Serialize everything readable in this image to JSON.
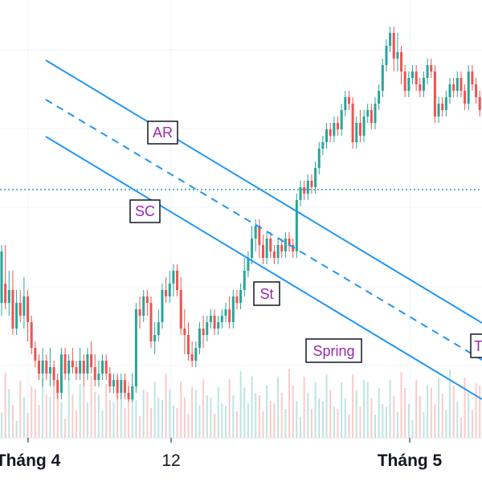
{
  "chart_data": {
    "type": "candlestick",
    "x_ticks": [
      {
        "label": "Tháng 4",
        "bold": true
      },
      {
        "label": "12",
        "bold": false
      },
      {
        "label": "Tháng 5",
        "bold": true
      }
    ],
    "annotations": [
      "AR",
      "SC",
      "St",
      "Spring",
      "T"
    ],
    "grid": true,
    "colors": {
      "up": "#26a69a",
      "down": "#ef5350",
      "channel": "#2196f3",
      "annotation_text": "#9c27b0",
      "reference_line": "#26a69a"
    },
    "candles": [
      [
        205,
        245,
        195,
        250
      ],
      [
        220,
        205,
        200,
        250
      ],
      [
        205,
        215,
        195,
        230
      ],
      [
        215,
        185,
        180,
        230
      ],
      [
        185,
        205,
        180,
        215
      ],
      [
        205,
        195,
        190,
        215
      ],
      [
        195,
        210,
        185,
        225
      ],
      [
        210,
        190,
        175,
        215
      ],
      [
        190,
        170,
        165,
        195
      ],
      [
        170,
        160,
        155,
        175
      ],
      [
        160,
        150,
        145,
        165
      ],
      [
        150,
        160,
        140,
        170
      ],
      [
        160,
        150,
        145,
        165
      ],
      [
        150,
        155,
        140,
        170
      ],
      [
        155,
        145,
        140,
        160
      ],
      [
        145,
        135,
        130,
        150
      ],
      [
        135,
        165,
        130,
        170
      ],
      [
        165,
        150,
        145,
        170
      ],
      [
        150,
        160,
        145,
        165
      ],
      [
        160,
        155,
        150,
        170
      ],
      [
        155,
        150,
        145,
        160
      ],
      [
        150,
        160,
        145,
        170
      ],
      [
        160,
        150,
        140,
        165
      ],
      [
        150,
        165,
        145,
        170
      ],
      [
        165,
        155,
        150,
        175
      ],
      [
        155,
        145,
        140,
        165
      ],
      [
        145,
        150,
        140,
        160
      ],
      [
        150,
        160,
        145,
        165
      ],
      [
        160,
        150,
        145,
        165
      ],
      [
        150,
        140,
        135,
        155
      ],
      [
        140,
        145,
        135,
        150
      ],
      [
        145,
        135,
        130,
        150
      ],
      [
        135,
        145,
        130,
        150
      ],
      [
        145,
        135,
        130,
        150
      ],
      [
        135,
        130,
        128,
        140
      ],
      [
        130,
        140,
        128,
        150
      ],
      [
        140,
        200,
        135,
        205
      ],
      [
        200,
        195,
        185,
        210
      ],
      [
        195,
        210,
        190,
        215
      ],
      [
        210,
        205,
        195,
        215
      ],
      [
        205,
        175,
        170,
        210
      ],
      [
        175,
        180,
        165,
        190
      ],
      [
        180,
        190,
        175,
        200
      ],
      [
        190,
        215,
        185,
        220
      ],
      [
        215,
        210,
        205,
        225
      ],
      [
        210,
        220,
        205,
        230
      ],
      [
        220,
        230,
        210,
        235
      ],
      [
        230,
        215,
        210,
        235
      ],
      [
        215,
        185,
        180,
        225
      ],
      [
        185,
        180,
        165,
        200
      ],
      [
        180,
        165,
        160,
        190
      ],
      [
        165,
        160,
        155,
        175
      ],
      [
        160,
        170,
        155,
        175
      ],
      [
        170,
        185,
        165,
        190
      ],
      [
        185,
        180,
        170,
        195
      ],
      [
        180,
        190,
        175,
        195
      ],
      [
        190,
        195,
        185,
        200
      ],
      [
        195,
        185,
        180,
        200
      ],
      [
        185,
        190,
        180,
        195
      ],
      [
        190,
        195,
        185,
        200
      ],
      [
        195,
        200,
        190,
        205
      ],
      [
        200,
        190,
        185,
        210
      ],
      [
        190,
        210,
        185,
        215
      ],
      [
        210,
        205,
        200,
        215
      ],
      [
        205,
        215,
        200,
        220
      ],
      [
        215,
        230,
        210,
        240
      ],
      [
        230,
        240,
        225,
        245
      ],
      [
        240,
        255,
        235,
        265
      ],
      [
        255,
        265,
        245,
        270
      ],
      [
        265,
        250,
        240,
        270
      ],
      [
        250,
        240,
        235,
        258
      ],
      [
        240,
        255,
        235,
        260
      ],
      [
        255,
        245,
        240,
        260
      ],
      [
        245,
        240,
        235,
        250
      ],
      [
        240,
        250,
        235,
        255
      ],
      [
        250,
        245,
        240,
        255
      ],
      [
        245,
        255,
        240,
        260
      ],
      [
        255,
        250,
        245,
        260
      ],
      [
        250,
        245,
        240,
        255
      ],
      [
        245,
        285,
        240,
        290
      ],
      [
        285,
        295,
        280,
        300
      ],
      [
        295,
        290,
        285,
        300
      ],
      [
        290,
        300,
        285,
        305
      ],
      [
        300,
        295,
        290,
        305
      ],
      [
        295,
        310,
        290,
        315
      ],
      [
        310,
        325,
        305,
        330
      ],
      [
        325,
        330,
        320,
        335
      ],
      [
        330,
        340,
        325,
        345
      ],
      [
        340,
        335,
        330,
        345
      ],
      [
        335,
        345,
        330,
        350
      ],
      [
        345,
        340,
        335,
        350
      ],
      [
        340,
        355,
        335,
        360
      ],
      [
        355,
        365,
        350,
        370
      ],
      [
        365,
        360,
        355,
        370
      ],
      [
        360,
        330,
        325,
        365
      ],
      [
        330,
        345,
        325,
        350
      ],
      [
        345,
        335,
        330,
        355
      ],
      [
        335,
        350,
        330,
        355
      ],
      [
        350,
        355,
        345,
        360
      ],
      [
        355,
        345,
        340,
        360
      ],
      [
        345,
        360,
        340,
        365
      ],
      [
        360,
        370,
        355,
        375
      ],
      [
        370,
        390,
        365,
        395
      ],
      [
        390,
        405,
        385,
        410
      ],
      [
        405,
        415,
        400,
        420
      ],
      [
        415,
        395,
        385,
        420
      ],
      [
        395,
        400,
        385,
        415
      ],
      [
        400,
        385,
        375,
        405
      ],
      [
        385,
        370,
        365,
        390
      ],
      [
        370,
        380,
        365,
        385
      ],
      [
        380,
        385,
        375,
        390
      ],
      [
        385,
        375,
        370,
        390
      ],
      [
        375,
        370,
        365,
        380
      ],
      [
        370,
        380,
        365,
        385
      ],
      [
        380,
        390,
        375,
        395
      ],
      [
        390,
        385,
        380,
        395
      ],
      [
        385,
        350,
        345,
        390
      ],
      [
        350,
        360,
        345,
        365
      ],
      [
        360,
        355,
        350,
        365
      ],
      [
        355,
        365,
        350,
        370
      ],
      [
        365,
        375,
        360,
        380
      ],
      [
        375,
        370,
        365,
        380
      ],
      [
        370,
        380,
        365,
        385
      ],
      [
        380,
        370,
        365,
        385
      ],
      [
        370,
        360,
        355,
        375
      ],
      [
        360,
        385,
        355,
        390
      ],
      [
        385,
        375,
        370,
        390
      ],
      [
        375,
        365,
        360,
        380
      ],
      [
        365,
        355,
        350,
        370
      ],
      [
        355,
        345,
        340,
        360
      ],
      [
        345,
        355,
        340,
        360
      ],
      [
        355,
        350,
        345,
        360
      ],
      [
        350,
        360,
        345,
        365
      ],
      [
        360,
        340,
        335,
        365
      ],
      [
        340,
        335,
        330,
        345
      ]
    ]
  }
}
